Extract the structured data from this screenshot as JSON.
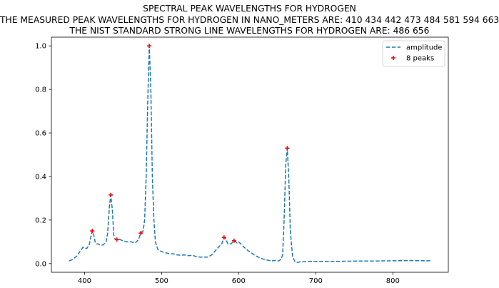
{
  "chart_data": {
    "type": "line",
    "title_lines": [
      "SPECTRAL PEAK WAVELENGTHS FOR HYDROGEN",
      "THE MEASURED PEAK WAVELENGTHS FOR HYDROGEN IN NANO_METERS ARE: 410 434 442 473 484 581 594 663",
      "THE NIST STANDARD STRONG LINE WAVELENGTHS FOR HYDROGEN ARE: 486 656"
    ],
    "xlabel": "",
    "ylabel": "",
    "xlim": [
      357,
      872
    ],
    "ylim": [
      -0.04,
      1.04
    ],
    "xticks": [
      400,
      500,
      600,
      700,
      800
    ],
    "yticks": [
      0.0,
      0.2,
      0.4,
      0.6,
      0.8,
      1.0
    ],
    "xtick_labels": [
      "400",
      "500",
      "600",
      "700",
      "800"
    ],
    "ytick_labels": [
      "0.0",
      "0.2",
      "0.4",
      "0.6",
      "0.8",
      "1.0"
    ],
    "grid": false,
    "legend_position": "top-right",
    "series": [
      {
        "name": "amplitude",
        "style": "dashed",
        "color": "#1f77b4",
        "x": [
          380,
          385,
          390,
          395,
          398,
          400,
          403,
          406,
          408,
          410,
          412,
          414,
          416,
          418,
          420,
          424,
          428,
          430,
          432,
          434,
          436,
          438,
          440,
          442,
          446,
          450,
          455,
          460,
          466,
          470,
          473,
          476,
          478,
          480,
          482,
          484,
          486,
          488,
          490,
          492,
          495,
          500,
          505,
          510,
          515,
          520,
          525,
          530,
          535,
          540,
          545,
          550,
          555,
          560,
          565,
          570,
          575,
          578,
          581,
          583,
          586,
          590,
          594,
          598,
          600,
          603,
          607,
          612,
          618,
          625,
          632,
          638,
          643,
          648,
          652,
          655,
          657,
          659,
          661,
          663,
          665,
          667,
          670,
          673,
          676,
          680,
          690,
          700,
          720,
          740,
          760,
          780,
          800,
          820,
          850
        ],
        "y": [
          0.012,
          0.02,
          0.035,
          0.06,
          0.075,
          0.07,
          0.07,
          0.085,
          0.12,
          0.15,
          0.13,
          0.095,
          0.09,
          0.09,
          0.085,
          0.085,
          0.1,
          0.14,
          0.25,
          0.315,
          0.25,
          0.13,
          0.11,
          0.11,
          0.11,
          0.105,
          0.1,
          0.1,
          0.095,
          0.11,
          0.14,
          0.15,
          0.2,
          0.4,
          0.75,
          1.0,
          0.8,
          0.4,
          0.2,
          0.1,
          0.065,
          0.055,
          0.05,
          0.045,
          0.045,
          0.04,
          0.038,
          0.04,
          0.036,
          0.038,
          0.032,
          0.03,
          0.03,
          0.03,
          0.04,
          0.06,
          0.08,
          0.09,
          0.12,
          0.115,
          0.09,
          0.09,
          0.105,
          0.095,
          0.1,
          0.09,
          0.075,
          0.06,
          0.045,
          0.03,
          0.02,
          0.015,
          0.012,
          0.015,
          0.012,
          0.02,
          0.04,
          0.2,
          0.45,
          0.53,
          0.4,
          0.15,
          0.03,
          0.01,
          0.005,
          0.008,
          0.01,
          0.01,
          0.01,
          0.011,
          0.012,
          0.012,
          0.013,
          0.014,
          0.013
        ]
      },
      {
        "name": "8 peaks",
        "style": "markers",
        "marker": "+",
        "color": "#ff0000",
        "x": [
          410,
          434,
          442,
          473,
          484,
          581,
          594,
          663
        ],
        "y": [
          0.15,
          0.315,
          0.11,
          0.14,
          1.0,
          0.12,
          0.105,
          0.53
        ]
      }
    ]
  }
}
